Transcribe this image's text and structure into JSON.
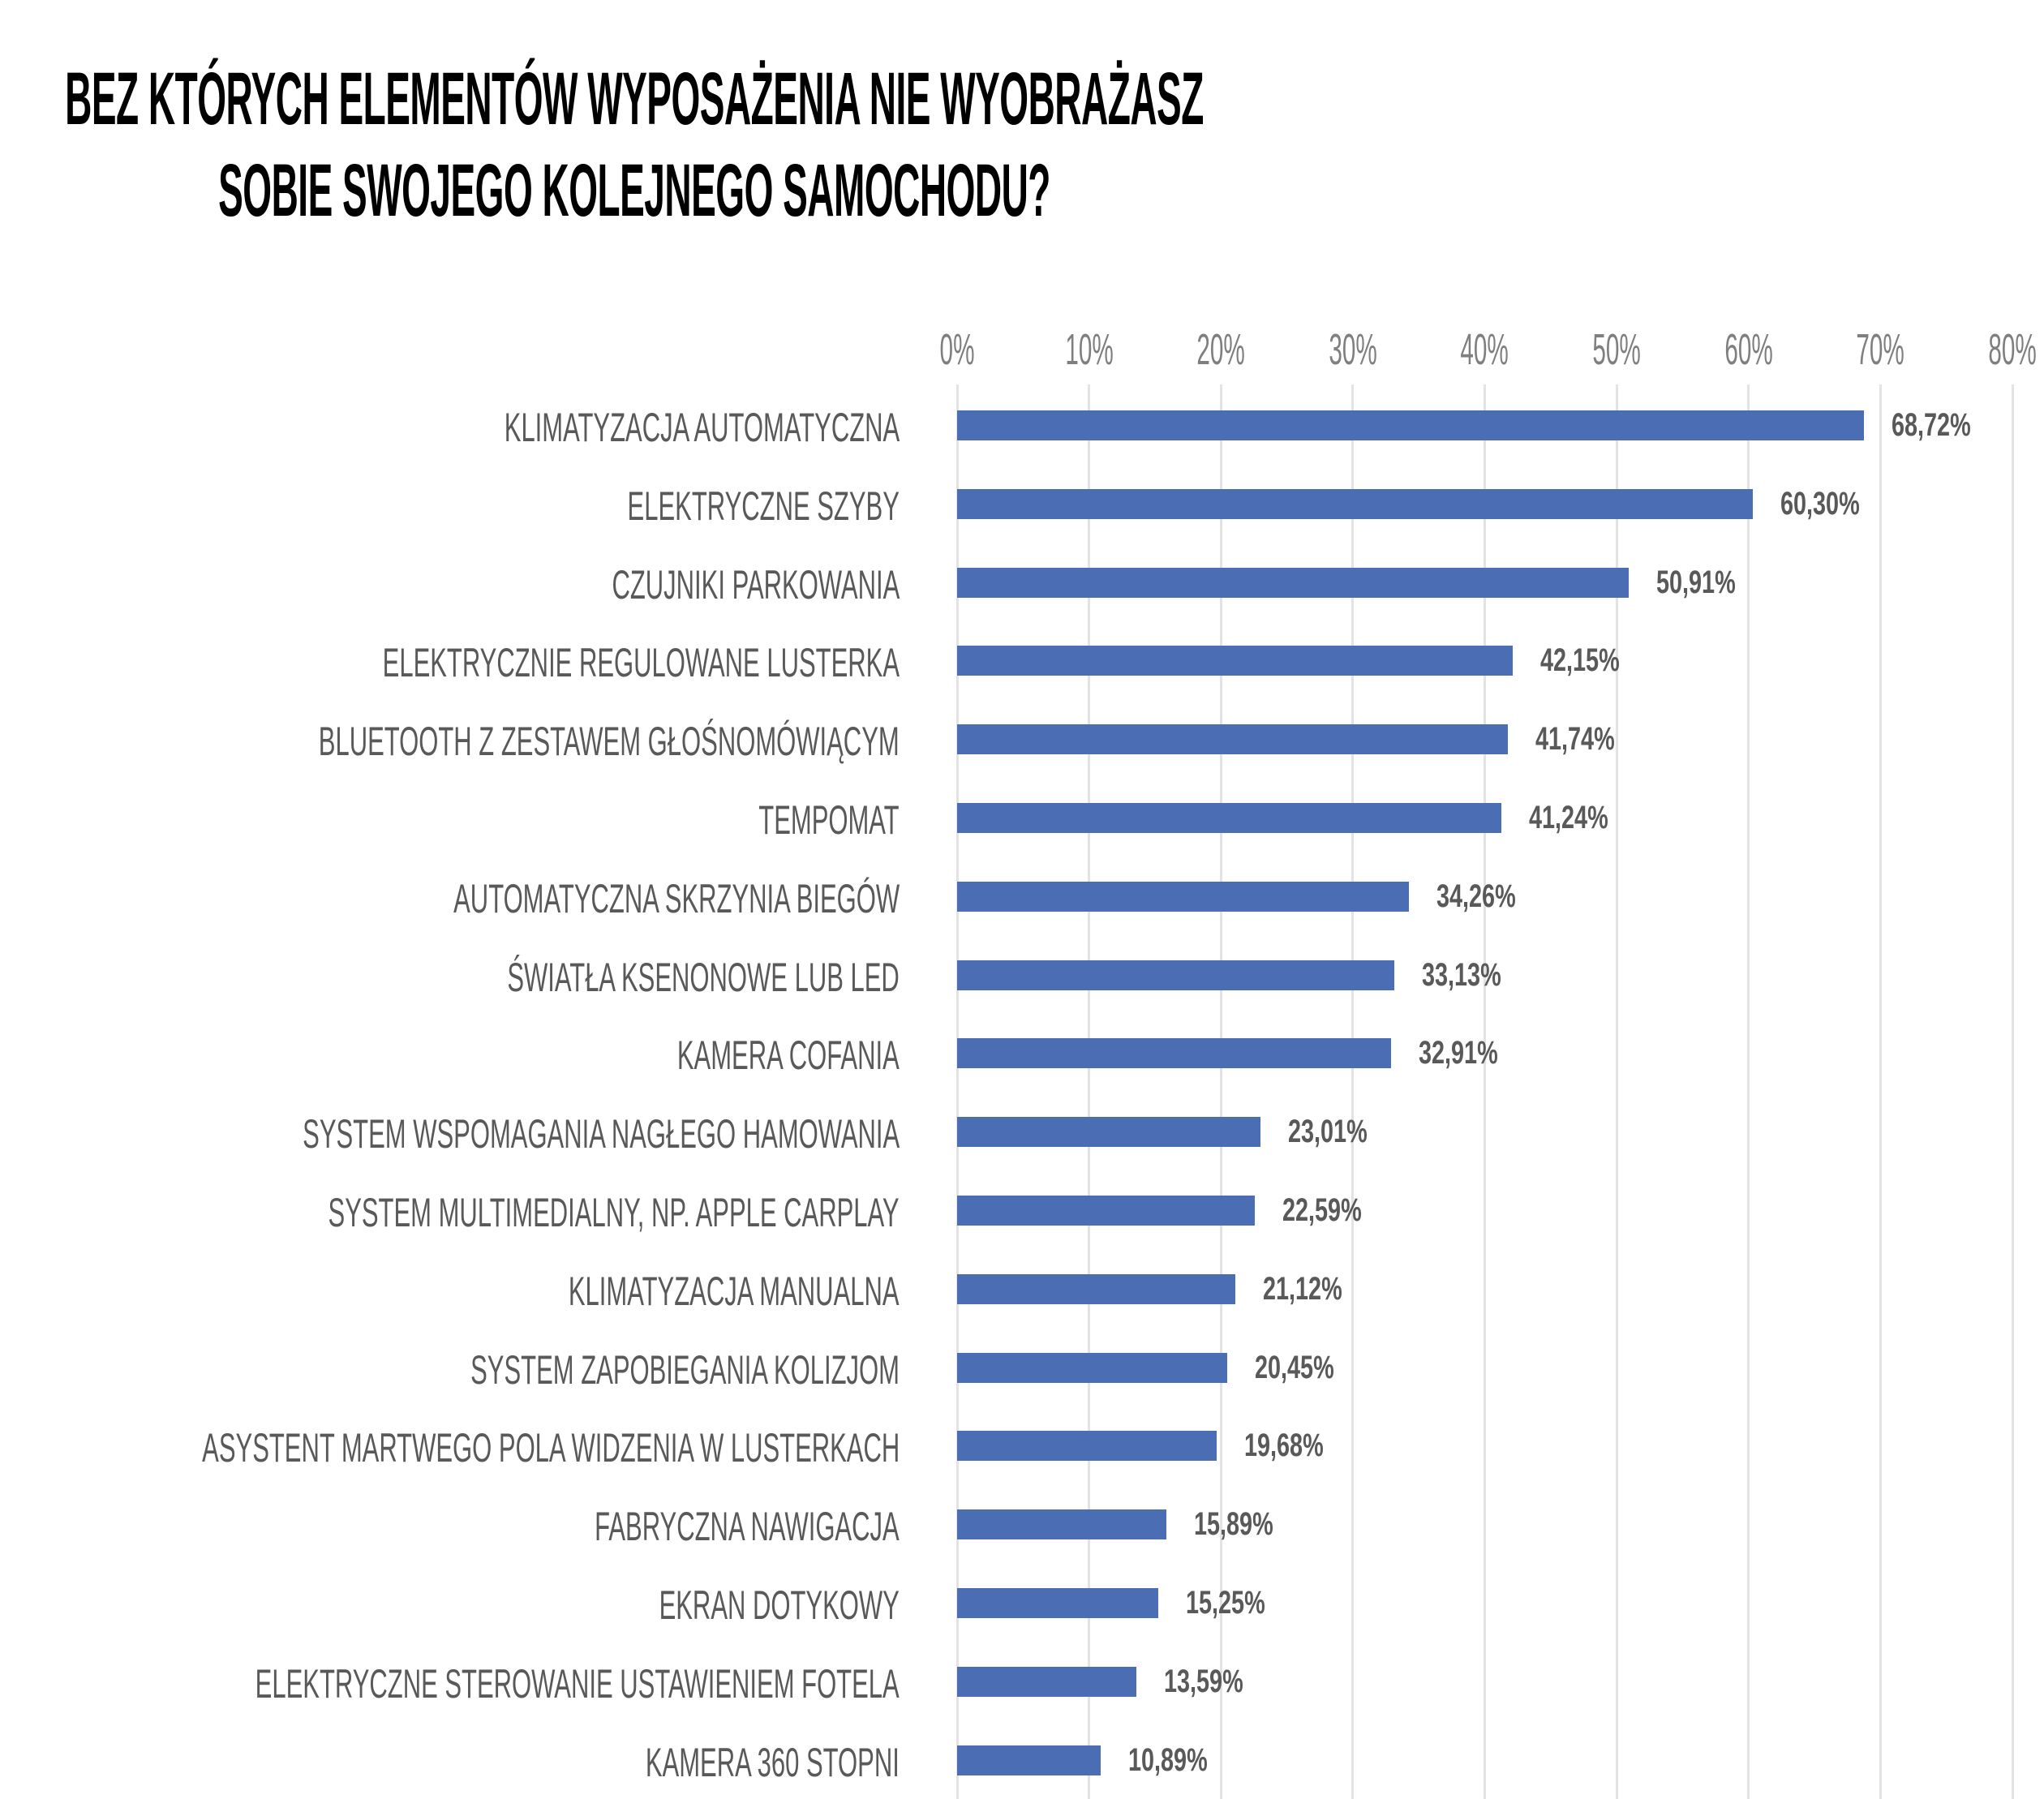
{
  "chart_data": {
    "type": "bar",
    "orientation": "horizontal",
    "title": [
      "BEZ KTÓRYCH ELEMENTÓW WYPOSAŻENIA NIE WYOBRAŻASZ",
      "SOBIE SWOJEGO KOLEJNEGO SAMOCHODU?"
    ],
    "xlabel": "",
    "ylabel": "",
    "xlim": [
      0,
      80
    ],
    "grid": true,
    "x_ticks": [
      "0%",
      "10%",
      "20%",
      "30%",
      "40%",
      "50%",
      "60%",
      "70%",
      "80%"
    ],
    "categories": [
      "KLIMATYZACJA AUTOMATYCZNA",
      "ELEKTRYCZNE SZYBY",
      "CZUJNIKI PARKOWANIA",
      "ELEKTRYCZNIE REGULOWANE LUSTERKA",
      "BLUETOOTH Z ZESTAWEM GŁOŚNOMÓWIĄCYM",
      "TEMPOMAT",
      "AUTOMATYCZNA SKRZYNIA BIEGÓW",
      "ŚWIATŁA KSENONOWE LUB LED",
      "KAMERA COFANIA",
      "SYSTEM WSPOMAGANIA NAGŁEGO HAMOWANIA",
      "SYSTEM MULTIMEDIALNY, NP. APPLE CARPLAY",
      "KLIMATYZACJA MANUALNA",
      "SYSTEM ZAPOBIEGANIA KOLIZJOM",
      "ASYSTENT MARTWEGO POLA WIDZENIA W LUSTERKACH",
      "FABRYCZNA NAWIGACJA",
      "EKRAN DOTYKOWY",
      "ELEKTRYCZNE STEROWANIE USTAWIENIEM FOTELA",
      "KAMERA 360 STOPNI"
    ],
    "values": [
      68.72,
      60.3,
      50.91,
      42.15,
      41.74,
      41.24,
      34.26,
      33.13,
      32.91,
      23.01,
      22.59,
      21.12,
      20.45,
      19.68,
      15.89,
      15.25,
      13.59,
      10.89
    ],
    "data_labels": [
      "68,72%",
      "60,30%",
      "50,91%",
      "42,15%",
      "41,74%",
      "41,24%",
      "34,26%",
      "33,13%",
      "32,91%",
      "23,01%",
      "22,59%",
      "21,12%",
      "20,45%",
      "19,68%",
      "15,89%",
      "15,25%",
      "13,59%",
      "10,89%"
    ],
    "bar_color": "#4a6db3"
  }
}
